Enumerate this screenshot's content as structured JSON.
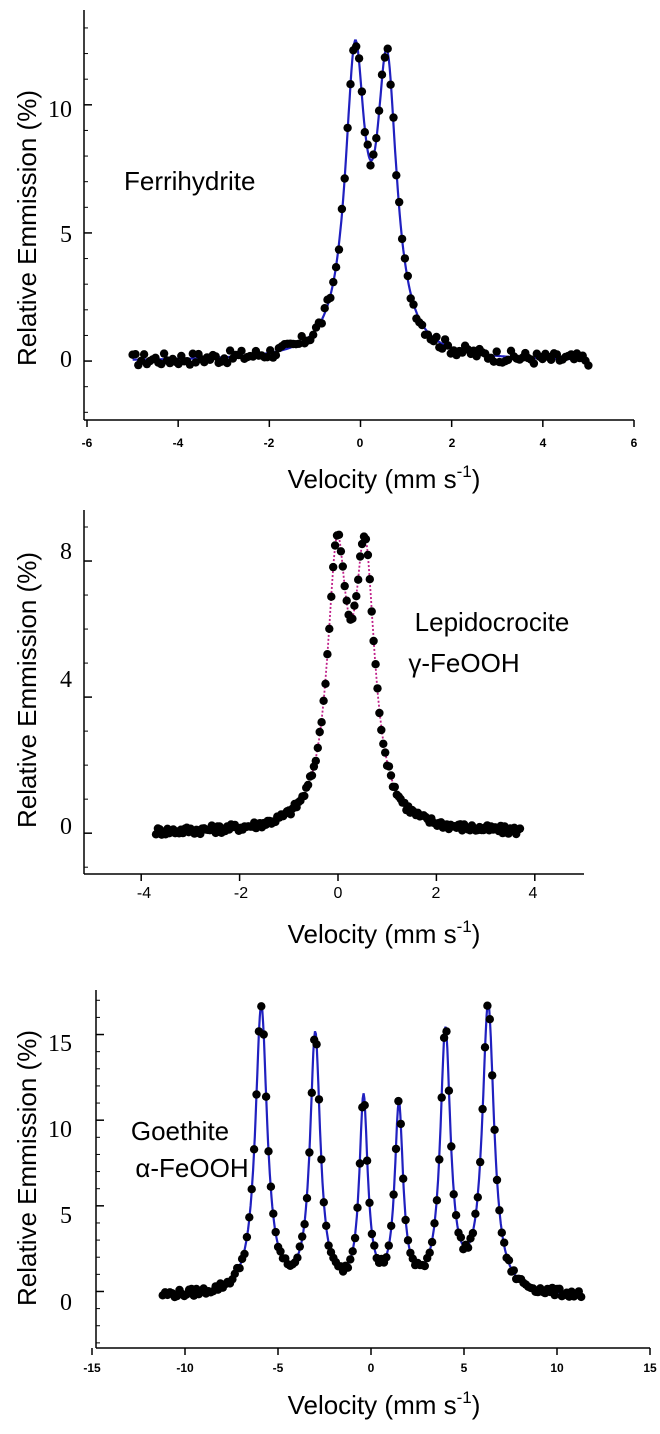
{
  "chart_data": [
    {
      "type": "scatter",
      "annotation": [
        "Ferrihydrite"
      ],
      "xlabel": "Velocity (mm s",
      "xlabel_sup": "-1",
      "xlabel_close": ")",
      "ylabel": "Relative Emmission (%)",
      "xlim": [
        -6,
        6
      ],
      "ylim": [
        -2.3,
        13.7
      ],
      "xticks": [
        -6,
        -4,
        -2,
        0,
        2,
        4,
        6
      ],
      "xtick_labels": [
        "-6",
        "-4",
        "-2",
        "0",
        "2",
        "4",
        "6"
      ],
      "yticks": [
        0,
        5,
        10
      ],
      "ytick_labels": [
        "0",
        "5",
        "10"
      ],
      "colors": {
        "points": "#000000",
        "fit": "#2020c0"
      },
      "fit": {
        "style": "solid",
        "baseline": 0,
        "peaks": [
          {
            "center": -0.12,
            "width": 0.26,
            "height": 11.2
          },
          {
            "center": 0.58,
            "width": 0.26,
            "height": 10.8
          }
        ]
      },
      "points_range": [
        -5.0,
        5.0
      ],
      "points_count": 160,
      "noise": 0.25
    },
    {
      "type": "scatter",
      "annotation": [
        "Lepidocrocite",
        "γ-FeOOH"
      ],
      "xlabel": "Velocity (mm s",
      "xlabel_sup": "-1",
      "xlabel_close": ")",
      "ylabel": "Relative Emmission (%)",
      "xlim": [
        -5,
        5
      ],
      "ylim": [
        -1.2,
        9.5
      ],
      "xticks": [
        -4,
        -2,
        0,
        2,
        4
      ],
      "xtick_labels": [
        "-4",
        "-2",
        "0",
        "2",
        "4"
      ],
      "yticks": [
        0,
        4,
        8
      ],
      "ytick_labels": [
        "0",
        "4",
        "8"
      ],
      "colors": {
        "points": "#000000",
        "fit": "#c0208a"
      },
      "fit": {
        "style": "dotted",
        "baseline": 0,
        "peaks": [
          {
            "center": -0.02,
            "width": 0.24,
            "height": 7.6
          },
          {
            "center": 0.55,
            "width": 0.24,
            "height": 7.6
          }
        ]
      },
      "points_range": [
        -3.7,
        3.7
      ],
      "points_count": 190,
      "noise": 0.12
    },
    {
      "type": "scatter",
      "annotation": [
        "Goethite",
        "α-FeOOH"
      ],
      "xlabel": "Velocity (mm s",
      "xlabel_sup": "-1",
      "xlabel_close": ")",
      "ylabel": "Relative Emmission (%)",
      "xlim": [
        -15,
        15
      ],
      "ylim": [
        -3.3,
        17.6
      ],
      "xticks": [
        -15,
        -10,
        -5,
        0,
        5,
        10,
        15
      ],
      "xtick_labels": [
        "-15",
        "-10",
        "-5",
        "0",
        "5",
        "10",
        "15"
      ],
      "yticks": [
        0,
        5,
        10,
        15
      ],
      "ytick_labels": [
        "0",
        "5",
        "10",
        "15"
      ],
      "colors": {
        "points": "#000000",
        "fit": "#2020c0"
      },
      "fit": {
        "style": "solid",
        "baseline": -0.3,
        "peaks": [
          {
            "center": -5.9,
            "width": 0.38,
            "height": 16.8
          },
          {
            "center": -3.0,
            "width": 0.33,
            "height": 15.0
          },
          {
            "center": -0.4,
            "width": 0.27,
            "height": 11.2
          },
          {
            "center": 1.5,
            "width": 0.27,
            "height": 10.7
          },
          {
            "center": 4.0,
            "width": 0.33,
            "height": 15.1
          },
          {
            "center": 6.3,
            "width": 0.38,
            "height": 16.8
          }
        ]
      },
      "points_range": [
        -11.2,
        11.3
      ],
      "points_count": 175,
      "noise": 0.22
    }
  ]
}
